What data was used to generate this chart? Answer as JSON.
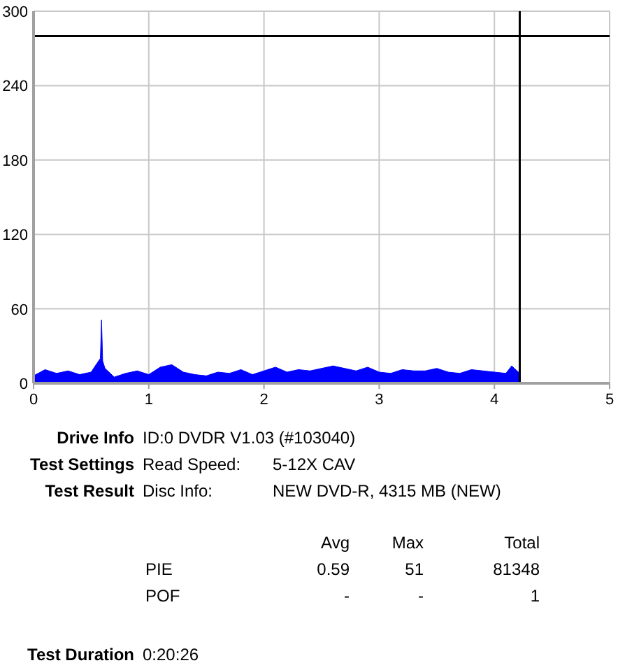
{
  "chart_data": {
    "type": "area",
    "x": [
      0,
      0.1,
      0.2,
      0.3,
      0.4,
      0.5,
      0.55,
      0.58,
      0.59,
      0.6,
      0.62,
      0.7,
      0.8,
      0.9,
      1.0,
      1.1,
      1.2,
      1.3,
      1.4,
      1.5,
      1.6,
      1.7,
      1.8,
      1.9,
      2.0,
      2.1,
      2.2,
      2.3,
      2.4,
      2.5,
      2.6,
      2.7,
      2.8,
      2.9,
      3.0,
      3.1,
      3.2,
      3.3,
      3.4,
      3.5,
      3.6,
      3.7,
      3.8,
      3.9,
      4.0,
      4.1,
      4.15,
      4.22
    ],
    "series": [
      {
        "color": "#0000ff",
        "values": [
          6,
          11,
          8,
          10,
          7,
          9,
          16,
          20,
          51,
          18,
          12,
          5,
          8,
          10,
          7,
          13,
          15,
          9,
          7,
          6,
          9,
          8,
          11,
          7,
          10,
          13,
          9,
          11,
          10,
          12,
          14,
          12,
          10,
          13,
          9,
          8,
          11,
          10,
          10,
          12,
          9,
          8,
          11,
          10,
          9,
          8,
          14,
          8
        ]
      }
    ],
    "xlim": [
      0,
      5
    ],
    "xticks": [
      0,
      1,
      2,
      3,
      4,
      5
    ],
    "ylim": [
      0,
      300
    ],
    "yticks": [
      0,
      60,
      120,
      180,
      240,
      300
    ],
    "grid": true,
    "ref_lines": [
      {
        "axis": "y",
        "value": 280,
        "color": "#000000"
      },
      {
        "axis": "x",
        "value": 4.22,
        "color": "#000000"
      }
    ],
    "annotations": [
      "Drive Info",
      "ID:0 DVDR V1.03 (#103040)",
      "Test Settings",
      "Read Speed:",
      "5-12X CAV",
      "Test Result",
      "Disc Info:",
      "NEW DVD-R, 4315 MB (NEW)",
      "Avg",
      "Max",
      "Total",
      "PIE",
      "0.59",
      "51",
      "81348",
      "POF",
      "-",
      "-",
      "1",
      "Test Duration",
      "0:20:26"
    ]
  }
}
